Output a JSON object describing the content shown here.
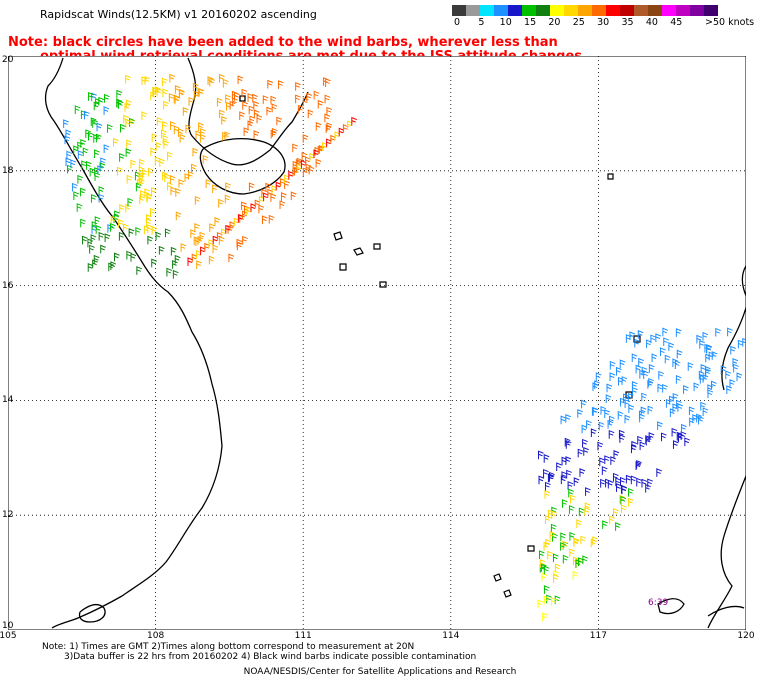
{
  "title": "Rapidscat Winds(12.5KM) v1 20160202 ascending",
  "note_line1": "Note: black circles have been added to the wind barbs, wherever less than",
  "note_line2": "optimal wind retrieval conditions are met due to the ISS attitude changes.",
  "colorbar": {
    "colors": [
      "#3a3a3a",
      "#9a9a9a",
      "#00e5ff",
      "#1e90ff",
      "#1818c8",
      "#00c000",
      "#108010",
      "#ffff00",
      "#ffd800",
      "#ffa500",
      "#ff6a00",
      "#ff0000",
      "#c00000",
      "#b05a2a",
      "#8b4513",
      "#ff00ff",
      "#c000c0",
      "#8000a0",
      "#400070"
    ],
    "labels": [
      "0",
      "5",
      "10",
      "15",
      "20",
      "25",
      "30",
      "35",
      "40",
      "45",
      ">50 knots"
    ]
  },
  "axes": {
    "x_ticks": [
      "105",
      "108",
      "111",
      "114",
      "117",
      "120"
    ],
    "y_ticks": [
      "20",
      "18",
      "16",
      "14",
      "12",
      "10"
    ]
  },
  "timestamp": "6:39",
  "footer_line1": "Note: 1) Times are GMT 2)Times along bottom correspond to measurement at 20N",
  "footer_line2": "3)Data buffer is 22 hrs from 20160202 4) Black wind barbs indicate possible contamination",
  "credit": "NOAA/NESDIS/Center for Satellite Applications and Research"
}
